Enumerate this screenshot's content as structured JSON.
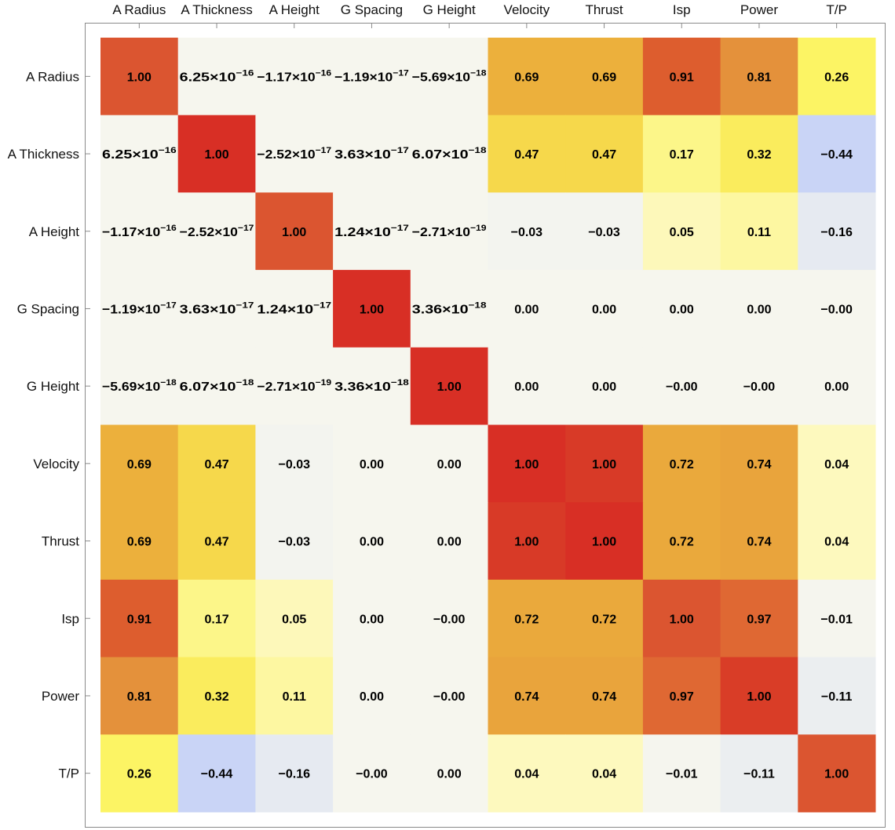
{
  "chart_data": {
    "type": "heatmap",
    "title": "",
    "xlabel": "",
    "ylabel": "",
    "labels": [
      "A Radius",
      "A Thickness",
      "A Height",
      "G Spacing",
      "G Height",
      "Velocity",
      "Thrust",
      "Isp",
      "Power",
      "T/P"
    ],
    "color_range": [
      -1,
      1
    ],
    "colors": {
      "negative": "#c9d4f6",
      "neutral": "#f6f6ee",
      "low": "#fdf9c6",
      "mid": "#f2c63c",
      "high": "#d72e23"
    },
    "values": [
      [
        1.0,
        6.25e-16,
        -1.17e-16,
        -1.19e-17,
        -5.69e-18,
        0.69,
        0.69,
        0.91,
        0.81,
        0.26
      ],
      [
        6.25e-16,
        1.0,
        -2.52e-17,
        3.63e-17,
        6.07e-18,
        0.47,
        0.47,
        0.17,
        0.32,
        -0.44
      ],
      [
        -1.17e-16,
        -2.52e-17,
        1.0,
        1.24e-17,
        -2.71e-19,
        -0.03,
        -0.03,
        0.05,
        0.11,
        -0.16
      ],
      [
        -1.19e-17,
        3.63e-17,
        1.24e-17,
        1.0,
        3.36e-18,
        0.0,
        0.0,
        0.0,
        0.0,
        -0.001
      ],
      [
        -5.69e-18,
        6.07e-18,
        -2.71e-19,
        3.36e-18,
        1.0,
        0.0,
        0.0,
        -0.001,
        -0.001,
        0.0
      ],
      [
        0.69,
        0.47,
        -0.03,
        0.0,
        0.0,
        1.0,
        1.0,
        0.72,
        0.74,
        0.04
      ],
      [
        0.69,
        0.47,
        -0.03,
        0.0,
        0.0,
        1.0,
        1.0,
        0.72,
        0.74,
        0.04
      ],
      [
        0.91,
        0.17,
        0.05,
        0.0,
        -0.001,
        0.72,
        0.72,
        1.0,
        0.97,
        -0.01
      ],
      [
        0.81,
        0.32,
        0.11,
        0.0,
        -0.001,
        0.74,
        0.74,
        0.97,
        1.0,
        -0.11
      ],
      [
        0.26,
        -0.44,
        -0.16,
        -0.001,
        0.0,
        0.04,
        0.04,
        -0.01,
        -0.11,
        1.0
      ]
    ],
    "cell_labels": [
      [
        "1.00",
        "6.25×10^-16",
        "−1.17×10^-16",
        "−1.19×10^-17",
        "−5.69×10^-18",
        "0.69",
        "0.69",
        "0.91",
        "0.81",
        "0.26"
      ],
      [
        "6.25×10^-16",
        "1.00",
        "−2.52×10^-17",
        "3.63×10^-17",
        "6.07×10^-18",
        "0.47",
        "0.47",
        "0.17",
        "0.32",
        "−0.44"
      ],
      [
        "−1.17×10^-16",
        "−2.52×10^-17",
        "1.00",
        "1.24×10^-17",
        "−2.71×10^-19",
        "−0.03",
        "−0.03",
        "0.05",
        "0.11",
        "−0.16"
      ],
      [
        "−1.19×10^-17",
        "3.63×10^-17",
        "1.24×10^-17",
        "1.00",
        "3.36×10^-18",
        "0.00",
        "0.00",
        "0.00",
        "0.00",
        "−0.00"
      ],
      [
        "−5.69×10^-18",
        "6.07×10^-18",
        "−2.71×10^-19",
        "3.36×10^-18",
        "1.00",
        "0.00",
        "0.00",
        "−0.00",
        "−0.00",
        "0.00"
      ],
      [
        "0.69",
        "0.47",
        "−0.03",
        "0.00",
        "0.00",
        "1.00",
        "1.00",
        "0.72",
        "0.74",
        "0.04"
      ],
      [
        "0.69",
        "0.47",
        "−0.03",
        "0.00",
        "0.00",
        "1.00",
        "1.00",
        "0.72",
        "0.74",
        "0.04"
      ],
      [
        "0.91",
        "0.17",
        "0.05",
        "0.00",
        "−0.00",
        "0.72",
        "0.72",
        "1.00",
        "0.97",
        "−0.01"
      ],
      [
        "0.81",
        "0.32",
        "0.11",
        "0.00",
        "−0.00",
        "0.74",
        "0.74",
        "0.97",
        "1.00",
        "−0.11"
      ],
      [
        "0.26",
        "−0.44",
        "−0.16",
        "−0.00",
        "0.00",
        "0.04",
        "0.04",
        "−0.01",
        "−0.11",
        "1.00"
      ]
    ],
    "grid": false,
    "legend": "none"
  }
}
